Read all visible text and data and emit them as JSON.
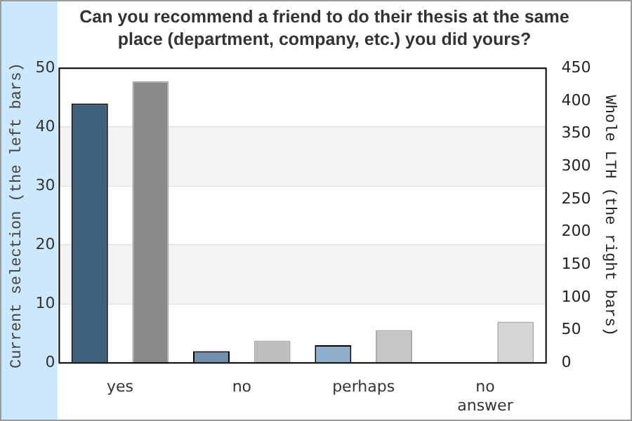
{
  "chart_data": {
    "type": "bar",
    "title": "Can you recommend a friend to do their thesis at the same place (department, company, etc.) you did yours?",
    "categories": [
      "yes",
      "no",
      "perhaps",
      "no answer"
    ],
    "series": [
      {
        "colors": [
          "#3f607c",
          "#7090ae",
          "#8eaecb",
          "#8eaecb"
        ],
        "values": [
          44,
          2,
          3,
          null
        ]
      },
      {
        "colors": [
          "#8a8a8a",
          "#bdbdbd",
          "#c6c6c6",
          "#d6d6d6"
        ],
        "values": [
          430,
          34,
          50,
          63
        ],
        "axis": "y2"
      }
    ],
    "ylabel": "Current selection (the left bars)",
    "y2label": "Whole LTH (the right bars)",
    "ylim": [
      0,
      50
    ],
    "yticks": [
      0,
      10,
      20,
      30,
      40,
      50
    ],
    "y2lim": [
      0,
      450
    ],
    "y2ticks": [
      0,
      50,
      100,
      150,
      200,
      250,
      300,
      350,
      400,
      450
    ],
    "grid": "y",
    "legend": false
  }
}
